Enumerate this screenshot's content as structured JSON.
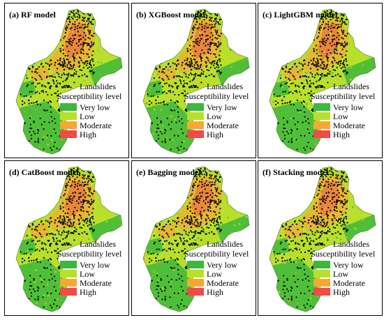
{
  "panels": [
    {
      "title": "(a)   RF model"
    },
    {
      "title": "(b) XGBoost model"
    },
    {
      "title": "(c) LightGBM model"
    },
    {
      "title": "(d) CatBoost model"
    },
    {
      "title": "(e)  Bagging model"
    },
    {
      "title": "(f) Stacking model"
    }
  ],
  "legend": {
    "points_label": "Landslides",
    "heading": "Susceptibility level",
    "classes": [
      {
        "label": "Very low",
        "color": "#3cb83c"
      },
      {
        "label": "Low",
        "color": "#b8e02a"
      },
      {
        "label": "Moderate",
        "color": "#f7a734"
      },
      {
        "label": "High",
        "color": "#f04a4a"
      }
    ]
  }
}
